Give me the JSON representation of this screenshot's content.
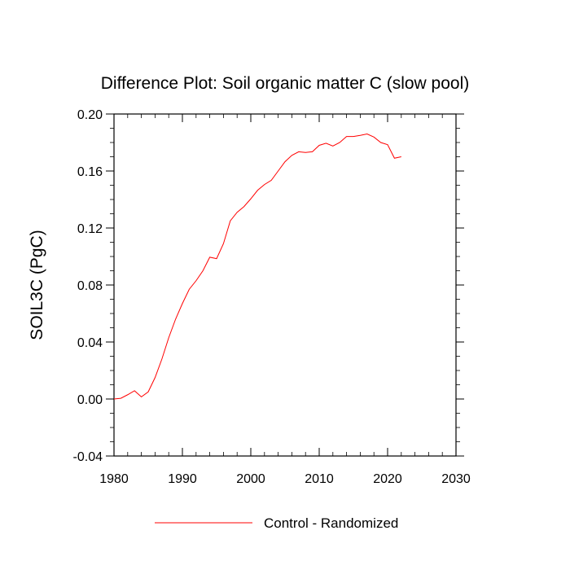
{
  "chart_data": {
    "type": "line",
    "title": "Difference Plot: Soil organic matter C (slow pool)",
    "xlabel": "",
    "ylabel": "SOIL3C  (PgC)",
    "xlim": [
      1980,
      2030
    ],
    "ylim": [
      -0.04,
      0.2
    ],
    "x_ticks": [
      1980,
      1990,
      2000,
      2010,
      2020,
      2030
    ],
    "x_tick_labels": [
      "1980",
      "1990",
      "2000",
      "2010",
      "2020",
      "2030"
    ],
    "y_ticks": [
      -0.04,
      0.0,
      0.04,
      0.08,
      0.12,
      0.16,
      0.2
    ],
    "y_tick_labels": [
      "-0.04",
      "0.00",
      "0.04",
      "0.08",
      "0.12",
      "0.16",
      "0.20"
    ],
    "grid": false,
    "legend_position": "bottom-center",
    "series": [
      {
        "name": "Control - Randomized",
        "color": "#ff0000",
        "x": [
          1980,
          1981,
          1982,
          1983,
          1984,
          1985,
          1986,
          1987,
          1988,
          1989,
          1990,
          1991,
          1992,
          1993,
          1994,
          1995,
          1996,
          1997,
          1998,
          1999,
          2000,
          2001,
          2002,
          2003,
          2004,
          2005,
          2006,
          2007,
          2008,
          2009,
          2010,
          2011,
          2012,
          2013,
          2014,
          2015,
          2016,
          2017,
          2018,
          2019,
          2020,
          2021,
          2022
        ],
        "y": [
          0.0,
          0.0005,
          0.003,
          0.0058,
          0.0015,
          0.005,
          0.015,
          0.028,
          0.043,
          0.056,
          0.067,
          0.077,
          0.083,
          0.09,
          0.0995,
          0.0985,
          0.109,
          0.125,
          0.131,
          0.135,
          0.1405,
          0.1465,
          0.1505,
          0.1535,
          0.16,
          0.1665,
          0.171,
          0.1735,
          0.173,
          0.1735,
          0.178,
          0.1795,
          0.1775,
          0.18,
          0.1842,
          0.1842,
          0.185,
          0.186,
          0.1838,
          0.18,
          0.1785,
          0.169,
          0.17
        ]
      }
    ]
  }
}
